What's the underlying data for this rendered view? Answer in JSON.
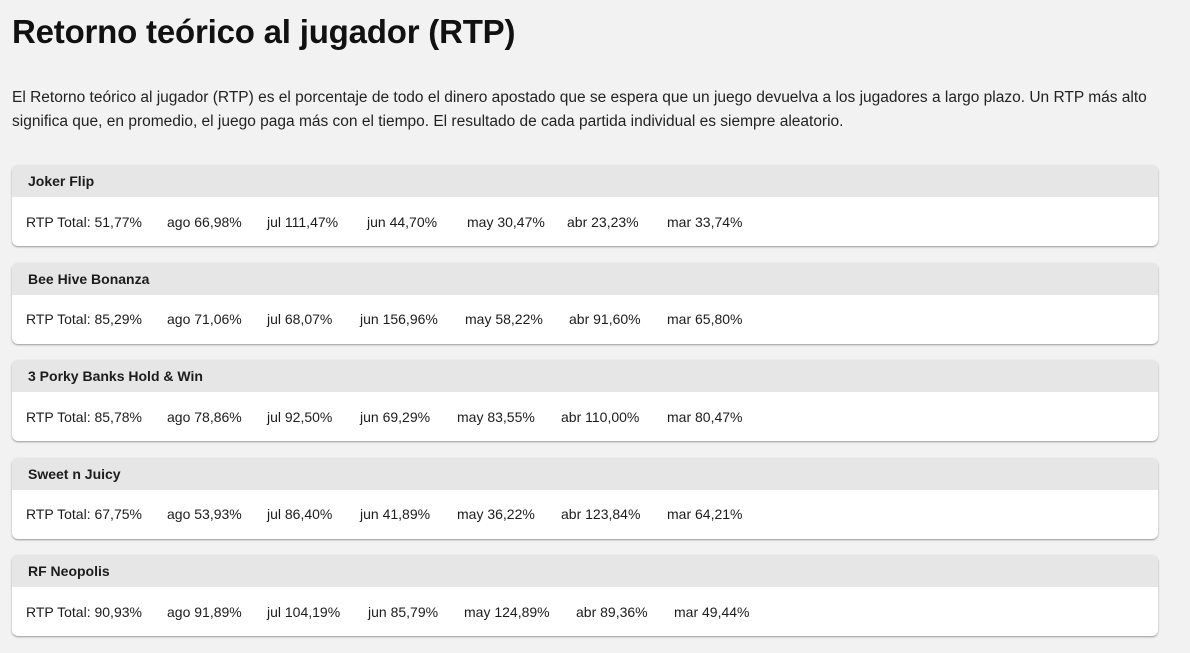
{
  "title": "Retorno teórico al jugador (RTP)",
  "intro": "El Retorno teórico al jugador (RTP) es el porcentaje de todo el dinero apostado que se espera que un juego devuelva a los jugadores a largo plazo. Un RTP más alto significa que, en promedio, el juego paga más con el tiempo. El resultado de cada partida individual es siempre aleatorio.",
  "games": [
    {
      "name": "Joker Flip",
      "total": "RTP Total: 51,77%",
      "months": [
        "ago 66,98%",
        "jul 111,47%",
        "jun 44,70%",
        "may 30,47%",
        "abr 23,23%",
        "mar 33,74%"
      ]
    },
    {
      "name": "Bee Hive Bonanza",
      "total": "RTP Total: 85,29%",
      "months": [
        "ago 71,06%",
        "jul 68,07%",
        "jun 156,96%",
        "may 58,22%",
        "abr 91,60%",
        "mar 65,80%"
      ]
    },
    {
      "name": "3 Porky Banks Hold & Win",
      "total": "RTP Total: 85,78%",
      "months": [
        "ago 78,86%",
        "jul 92,50%",
        "jun 69,29%",
        "may 83,55%",
        "abr 110,00%",
        "mar 80,47%"
      ]
    },
    {
      "name": "Sweet n Juicy",
      "total": "RTP Total: 67,75%",
      "months": [
        "ago 53,93%",
        "jul 86,40%",
        "jun 41,89%",
        "may 36,22%",
        "abr 123,84%",
        "mar 64,21%"
      ]
    },
    {
      "name": "RF Neopolis",
      "total": "RTP Total: 90,93%",
      "months": [
        "ago 91,89%",
        "jul 104,19%",
        "jun 85,79%",
        "may 124,89%",
        "abr 89,36%",
        "mar 49,44%"
      ]
    }
  ]
}
